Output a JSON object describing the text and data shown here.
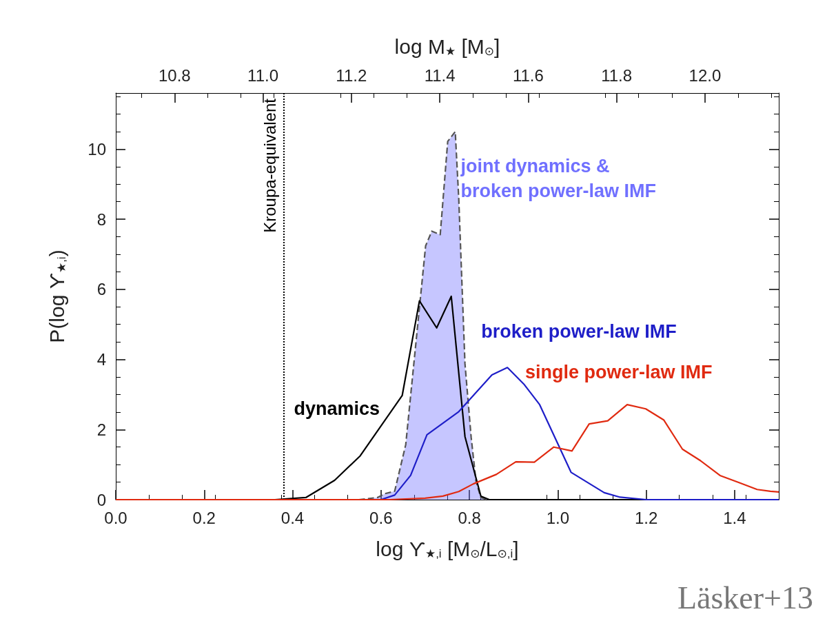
{
  "chart_data": {
    "type": "line",
    "xlabel": "log ϒ$_{★,i}$ [M$_{⊙}$/L$_{⊙,i}$]",
    "x2label": "log M$_{★}$ [M$_{⊙}$]",
    "ylabel": "P(log ϒ$_{★,i}$)",
    "xlim": [
      0,
      1.5
    ],
    "xticks": [
      {
        "value": 0,
        "label": "0.0"
      },
      {
        "value": 0.2,
        "label": "0.2"
      },
      {
        "value": 0.4,
        "label": "0.4"
      },
      {
        "value": 0.6,
        "label": "0.6"
      },
      {
        "value": 0.8,
        "label": "0.8"
      },
      {
        "value": 1,
        "label": "1.0"
      },
      {
        "value": 1.2,
        "label": "1.2"
      },
      {
        "value": 1.4,
        "label": "1.4"
      }
    ],
    "x2lim": [
      10.667,
      12.167
    ],
    "x2ticks": [
      10.8,
      {
        "value": 11,
        "label": "11.0"
      },
      11.2,
      11.4,
      11.6,
      11.8,
      {
        "value": 12,
        "label": "12.0"
      }
    ],
    "ylim": [
      0,
      11.6
    ],
    "yticks": [
      0,
      2,
      4,
      6,
      8,
      10
    ],
    "series": [
      {
        "name": "dynamics",
        "type": "line",
        "color": "#000000",
        "x": [
          0,
          0.36,
          0.43,
          0.495,
          0.553,
          0.648,
          0.687,
          0.726,
          0.759,
          0.79,
          0.826,
          0.845,
          1.5
        ],
        "values": [
          0,
          0,
          0.06,
          0.55,
          1.25,
          2.97,
          5.67,
          4.9,
          5.8,
          1.8,
          0.1,
          0,
          0
        ]
      },
      {
        "name": "joint dynamics & broken power-law IMF",
        "type": "area",
        "color": "#7070ff",
        "line_style": "dashed",
        "x": [
          0.55,
          0.592,
          0.609,
          0.631,
          0.656,
          0.701,
          0.715,
          0.734,
          0.751,
          0.768,
          0.776,
          0.79,
          0.804,
          0.815,
          0.826,
          0.84
        ],
        "values": [
          0,
          0.06,
          0.17,
          0.24,
          1.57,
          7.24,
          7.66,
          7.56,
          10.22,
          10.5,
          8.57,
          3.88,
          1.78,
          0.52,
          0.06,
          0
        ]
      },
      {
        "name": "broken power-law IMF",
        "type": "line",
        "color": "#1e1ec8",
        "x": [
          0,
          0.6,
          0.631,
          0.667,
          0.704,
          0.776,
          0.851,
          0.886,
          0.923,
          0.959,
          1.03,
          1.105,
          1.141,
          1.2,
          1.5
        ],
        "values": [
          0,
          0,
          0.13,
          0.69,
          1.85,
          2.51,
          3.56,
          3.77,
          3.3,
          2.71,
          0.78,
          0.2,
          0.07,
          0,
          0
        ]
      },
      {
        "name": "single power-law IMF",
        "type": "line",
        "color": "#e02a10",
        "x": [
          0,
          0.62,
          0.7,
          0.74,
          0.776,
          0.809,
          0.861,
          0.905,
          0.947,
          0.991,
          1.032,
          1.071,
          1.113,
          1.157,
          1.199,
          1.24,
          1.282,
          1.323,
          1.367,
          1.409,
          1.451,
          1.481,
          1.5
        ],
        "values": [
          0,
          0,
          0.04,
          0.1,
          0.23,
          0.45,
          0.72,
          1.08,
          1.07,
          1.5,
          1.39,
          2.16,
          2.25,
          2.71,
          2.59,
          2.27,
          1.44,
          1.11,
          0.69,
          0.49,
          0.29,
          0.24,
          0.22
        ]
      }
    ],
    "ref_lines": [
      {
        "axis": "x",
        "value": 0.38,
        "label": "Kroupa-equivalent",
        "line_style": "dotted",
        "color": "#000000"
      }
    ],
    "annotations": [
      "Läsker+13"
    ],
    "legend": false,
    "grid": false,
    "marker": "none"
  }
}
